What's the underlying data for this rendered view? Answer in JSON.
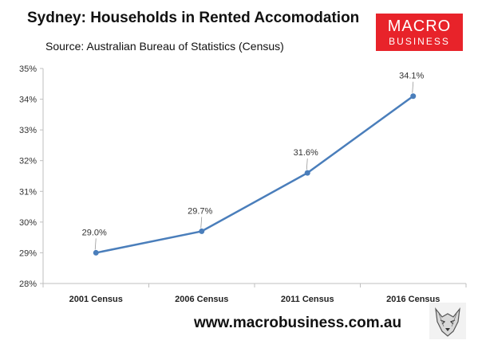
{
  "header": {
    "title": "Sydney: Households in Rented Accomodation",
    "subtitle": "Source: Australian Bureau of Statistics (Census)"
  },
  "logo": {
    "line1": "MACRO",
    "line2": "BUSINESS",
    "color": "#e8232a"
  },
  "footer": {
    "website": "www.macrobusiness.com.au",
    "icon": "wolf-logo-icon"
  },
  "colors": {
    "line": "#4a7ebb",
    "grid": "#d9d9d9",
    "axis": "#bfbfbf"
  },
  "chart_data": {
    "type": "line",
    "title": "Sydney: Households in Rented Accomodation",
    "categories": [
      "2001 Census",
      "2006 Census",
      "2011 Census",
      "2016 Census"
    ],
    "series": [
      {
        "values": [
          29.0,
          29.7,
          31.6,
          34.1
        ],
        "labels": [
          "29.0%",
          "29.7%",
          "31.6%",
          "34.1%"
        ]
      }
    ],
    "ylim": [
      28,
      35
    ],
    "yticks": [
      28,
      29,
      30,
      31,
      32,
      33,
      34,
      35
    ],
    "ytick_labels": [
      "28%",
      "29%",
      "30%",
      "31%",
      "32%",
      "33%",
      "34%",
      "35%"
    ],
    "grid": false
  }
}
